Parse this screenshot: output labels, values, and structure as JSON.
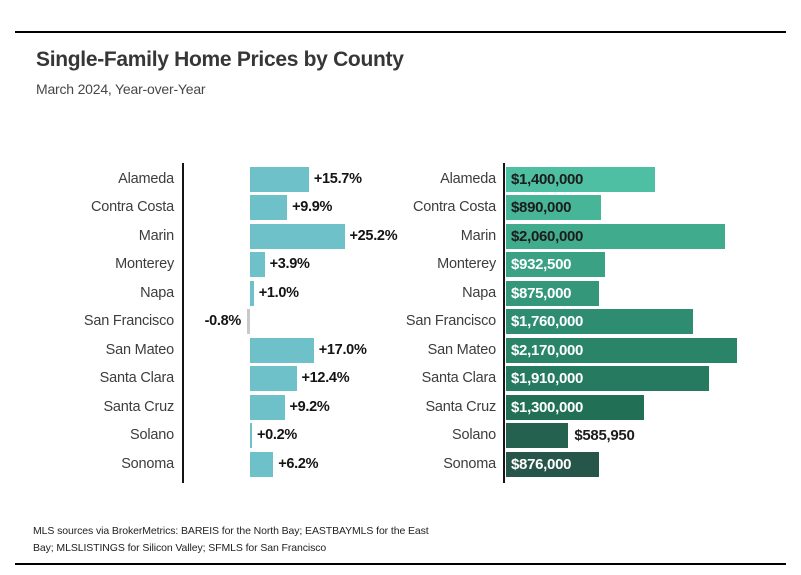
{
  "header": {
    "title": "Single-Family Home Prices by County",
    "subtitle": "March 2024, Year-over-Year"
  },
  "footer": {
    "lines": [
      "MLS sources via BrokerMetrics: BAREIS for the North Bay; EASTBAYMLS for the East",
      "Bay; MLSLISTINGS for Silicon Valley; SFMLS for San Francisco"
    ]
  },
  "colors": {
    "positive_bar": "#6ec0c9",
    "negative_bar": "#c9c9c9",
    "axis": "#141414",
    "value_label": "#141414",
    "dark_text": "#1c1c1c",
    "light_text": "#ffffff"
  },
  "chart_data": [
    {
      "type": "bar",
      "name": "yoy-percent-change",
      "orientation": "horizontal",
      "title": "",
      "categories": [
        "Alameda",
        "Contra Costa",
        "Marin",
        "Monterey",
        "Napa",
        "San Francisco",
        "San Mateo",
        "Santa Clara",
        "Santa Cruz",
        "Solano",
        "Sonoma"
      ],
      "values": [
        15.7,
        9.9,
        25.2,
        3.9,
        1.0,
        -0.8,
        17.0,
        12.4,
        9.2,
        0.2,
        6.2
      ],
      "labels": [
        "+15.7%",
        "+9.9%",
        "+25.2%",
        "+3.9%",
        "+1.0%",
        "-0.8%",
        "+17.0%",
        "+12.4%",
        "+9.2%",
        "+0.2%",
        "+6.2%"
      ],
      "unit": "percent",
      "xlim": [
        -2,
        27
      ],
      "grid": false,
      "legend": false
    },
    {
      "type": "bar",
      "name": "median-sale-price",
      "orientation": "horizontal",
      "title": "",
      "categories": [
        "Alameda",
        "Contra Costa",
        "Marin",
        "Monterey",
        "Napa",
        "San Francisco",
        "San Mateo",
        "Santa Clara",
        "Santa Cruz",
        "Solano",
        "Sonoma"
      ],
      "values": [
        1400000,
        890000,
        2060000,
        932500,
        875000,
        1760000,
        2170000,
        1910000,
        1300000,
        585950,
        876000
      ],
      "labels": [
        "$1,400,000",
        "$890,000",
        "$2,060,000",
        "$932,500",
        "$875,000",
        "$1,760,000",
        "$2,170,000",
        "$1,910,000",
        "$1,300,000",
        "$585,950",
        "$876,000"
      ],
      "unit": "usd",
      "xlim": [
        0,
        2400000
      ],
      "grid": false,
      "legend": false,
      "bar_colors": [
        "#4ebfa2",
        "#47b597",
        "#40ab8d",
        "#3aa184",
        "#34977a",
        "#2e8d71",
        "#298468",
        "#257a5f",
        "#217056",
        "#24614f",
        "#265649"
      ],
      "label_positions": [
        "inside",
        "inside",
        "inside",
        "inside",
        "inside",
        "inside",
        "inside",
        "inside",
        "inside",
        "outside",
        "inside"
      ],
      "label_colors": [
        "#1c1c1c",
        "#1c1c1c",
        "#1c1c1c",
        "#ffffff",
        "#ffffff",
        "#ffffff",
        "#ffffff",
        "#ffffff",
        "#ffffff",
        "#1c1c1c",
        "#ffffff"
      ]
    }
  ]
}
